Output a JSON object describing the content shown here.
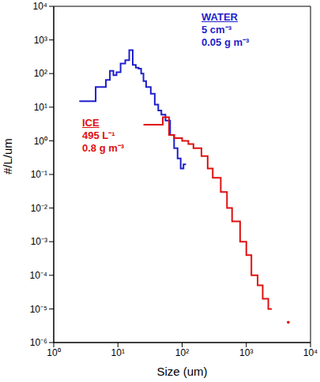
{
  "chart_data": {
    "type": "line",
    "log": true,
    "grid": false,
    "x_label": "Size (um)",
    "y_label": "#/L/um",
    "xlim": [
      1,
      10000
    ],
    "xticks": [
      {
        "value": 1,
        "label": "10⁰"
      },
      {
        "value": 10,
        "label": "10¹"
      },
      {
        "value": 100,
        "label": "10²"
      },
      {
        "value": 1000,
        "label": "10³"
      },
      {
        "value": 10000,
        "label": "10⁴"
      }
    ],
    "ylim": [
      1e-06,
      10000
    ],
    "yticks": [
      {
        "value": 1e-06,
        "label": "10⁻⁶"
      },
      {
        "value": 1e-05,
        "label": "10⁻⁵"
      },
      {
        "value": 0.0001,
        "label": "10⁻⁴"
      },
      {
        "value": 0.001,
        "label": "10⁻³"
      },
      {
        "value": 0.01,
        "label": "10⁻²"
      },
      {
        "value": 0.1,
        "label": "10⁻¹"
      },
      {
        "value": 1,
        "label": "10⁰"
      },
      {
        "value": 10,
        "label": "10¹"
      },
      {
        "value": 100,
        "label": "10²"
      },
      {
        "value": 1000,
        "label": "10³"
      },
      {
        "value": 10000,
        "label": "10⁴"
      }
    ],
    "series": [
      {
        "name": "WATER",
        "color": "#1f1fcc",
        "line_style": "step",
        "x": [
          2.5,
          3.5,
          4.5,
          5.5,
          6.5,
          7.5,
          8.5,
          9.5,
          11,
          13,
          15,
          17,
          19,
          21,
          23,
          25,
          27.5,
          32.5,
          37.5,
          42.5,
          47.5,
          55,
          65,
          75,
          85,
          95,
          105,
          115
        ],
        "values": [
          15,
          15,
          40,
          40,
          65,
          120,
          90,
          110,
          200,
          250,
          500,
          180,
          150,
          140,
          100,
          60,
          40,
          25,
          12,
          8,
          6,
          4,
          1.5,
          0.6,
          0.3,
          0.15,
          0.2,
          0.2
        ]
      },
      {
        "name": "ICE",
        "color": "#e01010",
        "line_style": "step",
        "x": [
          25,
          37.5,
          50,
          62.5,
          75,
          100,
          125,
          150,
          200,
          250,
          300,
          400,
          500,
          600,
          800,
          1000,
          1200,
          1500,
          1800,
          2200,
          2500,
          3500,
          4500
        ],
        "values": [
          3,
          3,
          5,
          1.5,
          1.2,
          1,
          0.8,
          0.6,
          0.35,
          0.15,
          0.08,
          0.03,
          0.01,
          0.004,
          0.001,
          0.0004,
          0.0001,
          5e-05,
          2e-05,
          1e-05,
          1e-05,
          null,
          4e-06
        ]
      }
    ],
    "annotations": [
      {
        "series": "WATER",
        "title": "WATER",
        "lines": [
          "5 cm⁻³",
          "0.05 g m⁻³"
        ]
      },
      {
        "series": "ICE",
        "title": "ICE",
        "lines": [
          "495 L⁻¹",
          "0.8 g m⁻³"
        ]
      }
    ]
  }
}
